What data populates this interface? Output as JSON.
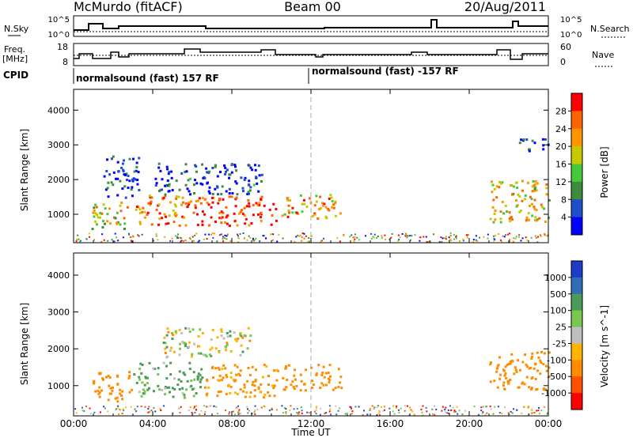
{
  "header": {
    "title": "McMurdo (fitACF)",
    "beam": "Beam 00",
    "date": "20/Aug/2011"
  },
  "panels": {
    "nsky": {
      "label": "N.Sky",
      "right_label": "N.Search",
      "left_ticks": [
        "10^5",
        "10^0"
      ],
      "right_ticks": [
        "10^5",
        "10^0"
      ]
    },
    "freq": {
      "label_line1": "Freq.",
      "label_line2": "[MHz]",
      "right_label": "Nave",
      "left_ticks": [
        "18",
        "8"
      ],
      "right_ticks": [
        "60",
        "0"
      ]
    },
    "cpid": {
      "label": "CPID",
      "segments": [
        "normalsound (fast) 157 RF",
        "normalsound (fast) -157 RF"
      ]
    }
  },
  "x_axis": {
    "label": "Time UT",
    "ticks": [
      "00:00",
      "04:00",
      "08:00",
      "12:00",
      "16:00",
      "20:00",
      "00:00"
    ]
  },
  "colors": {
    "power": [
      "#0000ff",
      "#1e4fc8",
      "#3c8c3c",
      "#46c83c",
      "#c8c800",
      "#ff9600",
      "#ff6400",
      "#ff0000"
    ],
    "velocity": [
      "#1e3cc8",
      "#2f6fb4",
      "#4c9a5a",
      "#78c850",
      "#bfbfbf",
      "#ffb400",
      "#ff8c00",
      "#ff5000",
      "#ff0000"
    ]
  },
  "chart_data": [
    {
      "type": "heatmap",
      "name": "Power",
      "ylabel": "Slant Range [km]",
      "xlabel": "",
      "ylim": [
        180,
        4600
      ],
      "xlim_hours": [
        0,
        24
      ],
      "y_ticks": [
        1000,
        2000,
        3000,
        4000
      ],
      "colorbar": {
        "label": "Power [dB]",
        "ticks": [
          4,
          8,
          12,
          16,
          20,
          24,
          28
        ]
      },
      "regions": [
        {
          "t0": 0.9,
          "t1": 2.8,
          "r0": 600,
          "r1": 1400,
          "v": 0.55
        },
        {
          "t0": 1.5,
          "t1": 3.3,
          "r0": 1500,
          "r1": 2700,
          "v": 0.12
        },
        {
          "t0": 3.1,
          "t1": 5.6,
          "r0": 700,
          "r1": 1600,
          "v": 0.75
        },
        {
          "t0": 5.6,
          "t1": 10.2,
          "r0": 700,
          "r1": 1550,
          "v": 0.9
        },
        {
          "t0": 4.0,
          "t1": 9.5,
          "r0": 1600,
          "r1": 2500,
          "v": 0.15
        },
        {
          "t0": 10.5,
          "t1": 13.5,
          "r0": 900,
          "r1": 1600,
          "v": 0.7
        },
        {
          "t0": 21.0,
          "t1": 24.0,
          "r0": 800,
          "r1": 2000,
          "v": 0.6
        },
        {
          "t0": 22.5,
          "t1": 24.0,
          "r0": 2800,
          "r1": 3200,
          "v": 0.12
        }
      ]
    },
    {
      "type": "heatmap",
      "name": "Velocity",
      "ylabel": "Slant Range [km]",
      "xlabel": "Time UT",
      "ylim": [
        180,
        4600
      ],
      "xlim_hours": [
        0,
        24
      ],
      "y_ticks": [
        1000,
        2000,
        3000,
        4000
      ],
      "colorbar": {
        "label": "Velocity [m s^-1]",
        "ticks": [
          1000,
          500,
          100,
          25,
          -25,
          -100,
          -500,
          -1000
        ]
      },
      "regions": [
        {
          "t0": 0.9,
          "t1": 3.0,
          "r0": 600,
          "r1": 1400,
          "v": -300
        },
        {
          "t0": 3.0,
          "t1": 6.5,
          "r0": 700,
          "r1": 1650,
          "v": 150
        },
        {
          "t0": 6.5,
          "t1": 10.3,
          "r0": 700,
          "r1": 1600,
          "v": -200
        },
        {
          "t0": 10.5,
          "t1": 13.5,
          "r0": 900,
          "r1": 1600,
          "v": -250
        },
        {
          "t0": 21.0,
          "t1": 24.0,
          "r0": 900,
          "r1": 2000,
          "v": -300
        },
        {
          "t0": 4.5,
          "t1": 9.0,
          "r0": 1800,
          "r1": 2600,
          "v": 20
        }
      ]
    }
  ]
}
